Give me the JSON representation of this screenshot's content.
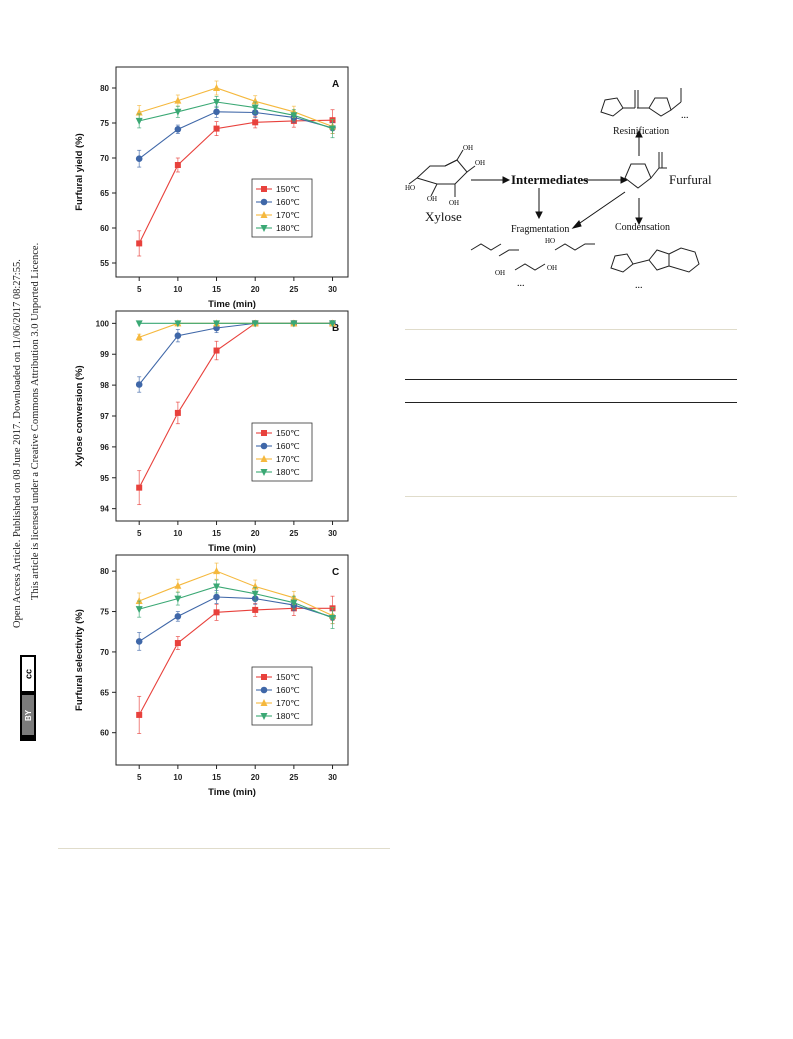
{
  "sidebar": {
    "line1": "Open Access Article. Published on 08 June 2017. Downloaded on 11/06/2017 08:27:55.",
    "line2": "This article is licensed under a Creative Commons Attribution 3.0 Unported Licence.",
    "cc_label": "cc",
    "by_label": "BY"
  },
  "scheme": {
    "xylose": "Xylose",
    "intermediates": "Intermediates",
    "furfural": "Furfural",
    "resinification": "Resinification",
    "fragmentation": "Fragmentation",
    "condensation": "Condensation",
    "ellipsis": "...",
    "oh": "OH",
    "ho": "HO"
  },
  "chart_data": [
    {
      "type": "line",
      "panel": "A",
      "xlabel": "Time (min)",
      "ylabel": "Furfural yield (%)",
      "x": [
        5,
        10,
        15,
        20,
        25,
        30
      ],
      "xlim": [
        2,
        32
      ],
      "ylim": [
        53,
        83
      ],
      "yticks": [
        55,
        60,
        65,
        70,
        75,
        80
      ],
      "legend_position": "center-right",
      "series": [
        {
          "name": "150℃",
          "color": "#e8413c",
          "marker": "square",
          "values": [
            57.8,
            69.0,
            74.2,
            75.1,
            75.3,
            75.4
          ],
          "err": [
            1.8,
            1.0,
            1.0,
            0.8,
            0.9,
            1.5
          ]
        },
        {
          "name": "160℃",
          "color": "#3f67a8",
          "marker": "circle",
          "values": [
            69.9,
            74.1,
            76.6,
            76.5,
            75.8,
            74.3
          ],
          "err": [
            1.2,
            0.6,
            0.8,
            0.7,
            0.7,
            0.8
          ]
        },
        {
          "name": "170℃",
          "color": "#f5b83d",
          "marker": "triangle-up",
          "values": [
            76.5,
            78.2,
            80.0,
            78.1,
            76.6,
            74.5
          ],
          "err": [
            1.0,
            0.8,
            1.0,
            0.8,
            0.8,
            1.0
          ]
        },
        {
          "name": "180℃",
          "color": "#3aa874",
          "marker": "triangle-down",
          "values": [
            75.3,
            76.6,
            78.0,
            77.2,
            76.1,
            74.2
          ],
          "err": [
            1.0,
            0.8,
            0.8,
            0.8,
            0.8,
            1.3
          ]
        }
      ]
    },
    {
      "type": "line",
      "panel": "B",
      "xlabel": "Time (min)",
      "ylabel": "Xylose conversion (%)",
      "x": [
        5,
        10,
        15,
        20,
        25,
        30
      ],
      "xlim": [
        2,
        32
      ],
      "ylim": [
        93.6,
        100.4
      ],
      "yticks": [
        94,
        95,
        96,
        97,
        98,
        99,
        100
      ],
      "legend_position": "center-right",
      "series": [
        {
          "name": "150℃",
          "color": "#e8413c",
          "marker": "square",
          "values": [
            94.68,
            97.1,
            99.12,
            100,
            100,
            100
          ],
          "err": [
            0.55,
            0.35,
            0.3,
            0,
            0,
            0
          ]
        },
        {
          "name": "160℃",
          "color": "#3f67a8",
          "marker": "circle",
          "values": [
            98.02,
            99.6,
            99.85,
            100,
            100,
            100
          ],
          "err": [
            0.25,
            0.2,
            0.15,
            0,
            0,
            0
          ]
        },
        {
          "name": "170℃",
          "color": "#f5b83d",
          "marker": "triangle-up",
          "values": [
            99.55,
            100,
            100,
            100,
            100,
            100
          ],
          "err": [
            0.1,
            0,
            0,
            0,
            0,
            0
          ]
        },
        {
          "name": "180℃",
          "color": "#3aa874",
          "marker": "triangle-down",
          "values": [
            100,
            100,
            100,
            100,
            100,
            100
          ],
          "err": [
            0,
            0,
            0,
            0,
            0,
            0
          ]
        }
      ]
    },
    {
      "type": "line",
      "panel": "C",
      "xlabel": "Time (min)",
      "ylabel": "Furfural selectivity (%)",
      "x": [
        5,
        10,
        15,
        20,
        25,
        30
      ],
      "xlim": [
        2,
        32
      ],
      "ylim": [
        56,
        82
      ],
      "yticks": [
        60,
        65,
        70,
        75,
        80
      ],
      "legend_position": "center-right",
      "series": [
        {
          "name": "150℃",
          "color": "#e8413c",
          "marker": "square",
          "values": [
            62.2,
            71.1,
            74.9,
            75.2,
            75.4,
            75.4
          ],
          "err": [
            2.3,
            0.8,
            1.0,
            0.8,
            0.9,
            1.5
          ]
        },
        {
          "name": "160℃",
          "color": "#3f67a8",
          "marker": "circle",
          "values": [
            71.3,
            74.4,
            76.8,
            76.6,
            75.8,
            74.3
          ],
          "err": [
            1.1,
            0.6,
            0.8,
            0.7,
            0.7,
            0.8
          ]
        },
        {
          "name": "170℃",
          "color": "#f5b83d",
          "marker": "triangle-up",
          "values": [
            76.3,
            78.2,
            80.0,
            78.1,
            76.7,
            74.5
          ],
          "err": [
            1.0,
            0.8,
            1.0,
            0.8,
            0.8,
            1.0
          ]
        },
        {
          "name": "180℃",
          "color": "#3aa874",
          "marker": "triangle-down",
          "values": [
            75.3,
            76.6,
            78.1,
            77.2,
            76.1,
            74.2
          ],
          "err": [
            1.0,
            0.8,
            0.8,
            0.8,
            0.8,
            1.3
          ]
        }
      ]
    }
  ]
}
